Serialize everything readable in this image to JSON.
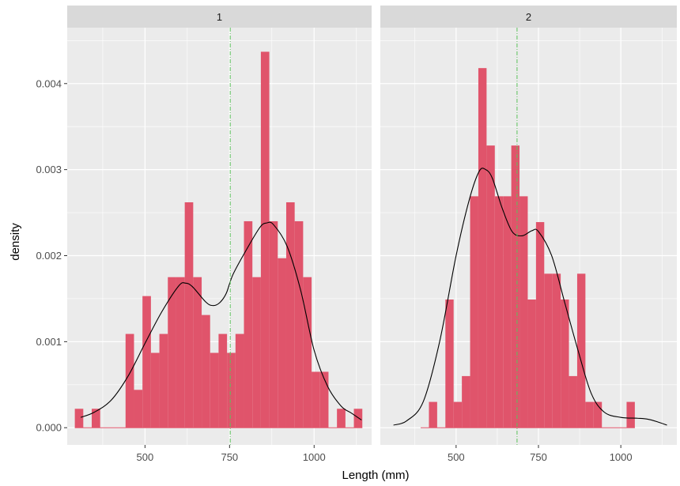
{
  "chart_data": {
    "type": "histogram-density-facets",
    "xlabel": "Length (mm)",
    "ylabel": "density",
    "xlim": [
      270,
      1170
    ],
    "ylim": [
      -0.0002,
      0.00465
    ],
    "x_ticks": [
      500,
      750,
      1000
    ],
    "x_minor_ticks": [
      375,
      625,
      875,
      1125
    ],
    "y_ticks": [
      0,
      0.001,
      0.002,
      0.003,
      0.004
    ],
    "y_tick_labels": [
      "0.000",
      "0.001",
      "0.002",
      "0.003",
      "0.004"
    ],
    "bin_width": 50,
    "colors": {
      "bar": "#e0546b",
      "panel_background": "#ebebeb",
      "grid": "#ffffff",
      "strip_background": "#d9d9d9",
      "density_line": "#000000",
      "mean_line": "#5cc15c"
    },
    "panels": [
      {
        "label": "1",
        "bins": [
          [
            305,
            0.00022
          ],
          [
            355,
            0.00022
          ],
          [
            405,
            0
          ],
          [
            455,
            0.00109
          ],
          [
            480,
            0.00044
          ],
          [
            505,
            0.00153
          ],
          [
            530,
            0.00087
          ],
          [
            555,
            0.00109
          ],
          [
            580,
            0.00175
          ],
          [
            605,
            0.00175
          ],
          [
            630,
            0.00262
          ],
          [
            655,
            0.00175
          ],
          [
            680,
            0.00131
          ],
          [
            705,
            0.00087
          ],
          [
            730,
            0.00109
          ],
          [
            755,
            0.00087
          ],
          [
            780,
            0.00109
          ],
          [
            805,
            0.0024
          ],
          [
            830,
            0.00175
          ],
          [
            855,
            0.00437
          ],
          [
            880,
            0.0024
          ],
          [
            905,
            0.00197
          ],
          [
            930,
            0.00262
          ],
          [
            955,
            0.0024
          ],
          [
            980,
            0.00175
          ],
          [
            1005,
            0.00065
          ],
          [
            1030,
            0.00065
          ],
          [
            1055,
            0
          ],
          [
            1080,
            0.00022
          ],
          [
            1105,
            0
          ],
          [
            1130,
            0.00022
          ]
        ],
        "density": [
          [
            310,
            0.00012
          ],
          [
            350,
            0.00018
          ],
          [
            400,
            0.00032
          ],
          [
            450,
            0.0006
          ],
          [
            500,
            0.00098
          ],
          [
            550,
            0.00135
          ],
          [
            600,
            0.00165
          ],
          [
            620,
            0.00168
          ],
          [
            640,
            0.00164
          ],
          [
            680,
            0.00146
          ],
          [
            700,
            0.00142
          ],
          [
            720,
            0.00145
          ],
          [
            740,
            0.00156
          ],
          [
            760,
            0.00178
          ],
          [
            800,
            0.00207
          ],
          [
            840,
            0.00233
          ],
          [
            860,
            0.00238
          ],
          [
            880,
            0.00236
          ],
          [
            920,
            0.00211
          ],
          [
            960,
            0.0016
          ],
          [
            1000,
            0.0009
          ],
          [
            1040,
            0.00048
          ],
          [
            1080,
            0.00025
          ],
          [
            1110,
            0.00017
          ],
          [
            1140,
            9e-05
          ]
        ],
        "mean": 752
      },
      {
        "label": "2",
        "bins": [
          [
            405,
            0
          ],
          [
            430,
            0.0003
          ],
          [
            455,
            0
          ],
          [
            480,
            0.00149
          ],
          [
            505,
            0.0003
          ],
          [
            530,
            0.0006
          ],
          [
            555,
            0.00269
          ],
          [
            580,
            0.00418
          ],
          [
            605,
            0.00328
          ],
          [
            630,
            0.00269
          ],
          [
            655,
            0.00269
          ],
          [
            680,
            0.00328
          ],
          [
            705,
            0.00269
          ],
          [
            730,
            0.00149
          ],
          [
            755,
            0.00239
          ],
          [
            780,
            0.00179
          ],
          [
            805,
            0.00179
          ],
          [
            830,
            0.00149
          ],
          [
            855,
            0.0006
          ],
          [
            880,
            0.00179
          ],
          [
            905,
            0.0003
          ],
          [
            930,
            0.0003
          ],
          [
            955,
            0
          ],
          [
            980,
            0
          ],
          [
            1005,
            0
          ],
          [
            1030,
            0.0003
          ]
        ],
        "density": [
          [
            310,
            3e-05
          ],
          [
            350,
            8e-05
          ],
          [
            400,
            0.0003
          ],
          [
            450,
            0.001
          ],
          [
            500,
            0.002
          ],
          [
            540,
            0.00265
          ],
          [
            570,
            0.00298
          ],
          [
            590,
            0.003
          ],
          [
            610,
            0.0029
          ],
          [
            640,
            0.00255
          ],
          [
            670,
            0.00228
          ],
          [
            700,
            0.00223
          ],
          [
            730,
            0.00229
          ],
          [
            750,
            0.00228
          ],
          [
            790,
            0.002
          ],
          [
            830,
            0.00145
          ],
          [
            870,
            0.0009
          ],
          [
            910,
            0.0004
          ],
          [
            950,
            0.00018
          ],
          [
            1000,
            0.00012
          ],
          [
            1050,
            0.00011
          ],
          [
            1080,
            0.0001
          ],
          [
            1110,
            7e-05
          ],
          [
            1140,
            3e-05
          ]
        ],
        "mean": 685
      }
    ]
  }
}
